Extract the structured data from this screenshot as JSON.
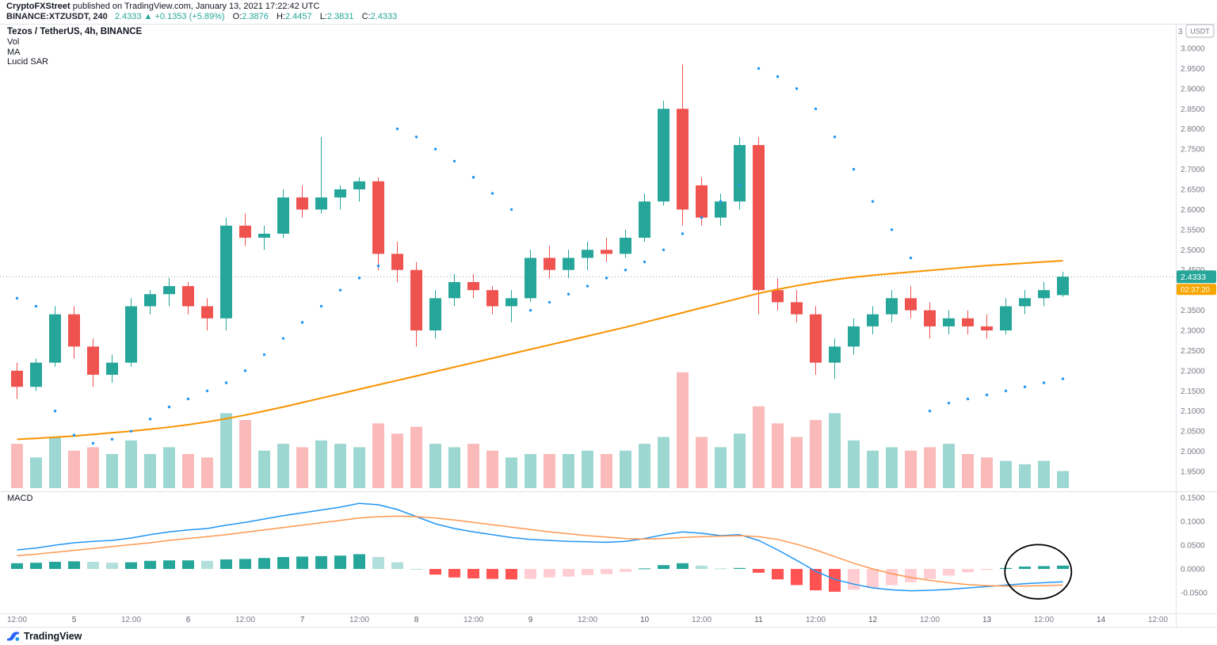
{
  "meta": {
    "attribution_bold": "CryptoFXStreet",
    "attribution_rest": " published on TradingView.com, January 13, 2021 17:22:42 UTC"
  },
  "ticker": {
    "symbol_line": "BINANCE:XTZUSDT, 240",
    "last_price": "2.4333",
    "arrow": "▲",
    "change": "+0.1353 (+5.89%)",
    "o_label": "O:",
    "o": "2.3876",
    "h_label": "H:",
    "h": "2.4457",
    "l_label": "L:",
    "l": "2.3831",
    "c_label": "C:",
    "c": "2.4333"
  },
  "legend": {
    "title": "Tezos / TetherUS, 4h, BINANCE",
    "indicators": [
      "Vol",
      "MA",
      "Lucid SAR"
    ]
  },
  "macd_panel": {
    "label": "MACD"
  },
  "price_axis": {
    "top_partial": "3",
    "unit_badge": "USDT",
    "last_price_label": "2.4333",
    "countdown": "02:37:20"
  },
  "logo": {
    "text": "TradingView"
  },
  "colors": {
    "up": "#26a69a",
    "down": "#ef5350",
    "vol_up": "rgba(38,166,154,0.45)",
    "vol_down": "rgba(239,83,80,0.40)",
    "ma": "#f89300",
    "sar": "#2196f3",
    "macd_line": "#2196f3",
    "signal_line": "#ff9850",
    "hist_up": "#26a69a",
    "hist_up_fade": "#b2dfdb",
    "hist_down": "#ff5252",
    "hist_down_fade": "#ffcdd2",
    "price_badge": "#26a69a",
    "countdown_badge": "#f7a600",
    "axis_text": "#787b86",
    "axis_text_major": "#555a64",
    "separator": "#e0e3eb",
    "price_line": "#90a4ae",
    "annotation": "#000000"
  },
  "chart_data": {
    "type": "candlestick",
    "title": "Tezos / TetherUS, 4h, BINANCE",
    "symbol": "BINANCE:XTZUSDT",
    "interval": "240",
    "price_axis_range": [
      1.95,
      3.0
    ],
    "price_axis_ticks": [
      3.0,
      2.95,
      2.9,
      2.85,
      2.8,
      2.75,
      2.7,
      2.65,
      2.6,
      2.55,
      2.5,
      2.45,
      2.4,
      2.35,
      2.3,
      2.25,
      2.2,
      2.15,
      2.1,
      2.05,
      2.0,
      1.95
    ],
    "macd_axis_ticks": [
      0.15,
      0.1,
      0.05,
      0,
      -0.05
    ],
    "price_line": 2.4333,
    "time_axis": [
      {
        "i": 0,
        "t": "12:00"
      },
      {
        "i": 3,
        "t": "5",
        "d": true
      },
      {
        "i": 6,
        "t": "12:00"
      },
      {
        "i": 9,
        "t": "6",
        "d": true
      },
      {
        "i": 12,
        "t": "12:00"
      },
      {
        "i": 15,
        "t": "7",
        "d": true
      },
      {
        "i": 18,
        "t": "12:00"
      },
      {
        "i": 21,
        "t": "8",
        "d": true
      },
      {
        "i": 24,
        "t": "12:00"
      },
      {
        "i": 27,
        "t": "9",
        "d": true
      },
      {
        "i": 30,
        "t": "12:00"
      },
      {
        "i": 33,
        "t": "10",
        "d": true
      },
      {
        "i": 36,
        "t": "12:00"
      },
      {
        "i": 39,
        "t": "11",
        "d": true
      },
      {
        "i": 42,
        "t": "12:00"
      },
      {
        "i": 45,
        "t": "12",
        "d": true
      },
      {
        "i": 48,
        "t": "12:00"
      },
      {
        "i": 51,
        "t": "13",
        "d": true
      },
      {
        "i": 54,
        "t": "12:00"
      },
      {
        "i": 57,
        "t": "14",
        "d": true
      },
      {
        "i": 60,
        "t": "12:00"
      }
    ],
    "candles": [
      [
        2.2,
        2.22,
        2.13,
        2.16
      ],
      [
        2.16,
        2.23,
        2.15,
        2.22
      ],
      [
        2.22,
        2.36,
        2.21,
        2.34
      ],
      [
        2.34,
        2.36,
        2.23,
        2.26
      ],
      [
        2.26,
        2.28,
        2.16,
        2.19
      ],
      [
        2.19,
        2.24,
        2.17,
        2.22
      ],
      [
        2.22,
        2.38,
        2.21,
        2.36
      ],
      [
        2.36,
        2.4,
        2.34,
        2.39
      ],
      [
        2.39,
        2.43,
        2.36,
        2.41
      ],
      [
        2.41,
        2.42,
        2.34,
        2.36
      ],
      [
        2.36,
        2.38,
        2.3,
        2.33
      ],
      [
        2.33,
        2.58,
        2.3,
        2.56
      ],
      [
        2.56,
        2.59,
        2.51,
        2.53
      ],
      [
        2.53,
        2.56,
        2.5,
        2.54
      ],
      [
        2.54,
        2.65,
        2.53,
        2.63
      ],
      [
        2.63,
        2.66,
        2.58,
        2.6
      ],
      [
        2.6,
        2.78,
        2.59,
        2.63
      ],
      [
        2.63,
        2.66,
        2.6,
        2.65
      ],
      [
        2.65,
        2.68,
        2.62,
        2.67
      ],
      [
        2.67,
        2.68,
        2.45,
        2.49
      ],
      [
        2.49,
        2.52,
        2.42,
        2.45
      ],
      [
        2.45,
        2.47,
        2.26,
        2.3
      ],
      [
        2.3,
        2.4,
        2.28,
        2.38
      ],
      [
        2.38,
        2.44,
        2.36,
        2.42
      ],
      [
        2.42,
        2.44,
        2.38,
        2.4
      ],
      [
        2.4,
        2.41,
        2.34,
        2.36
      ],
      [
        2.36,
        2.4,
        2.32,
        2.38
      ],
      [
        2.38,
        2.5,
        2.37,
        2.48
      ],
      [
        2.48,
        2.51,
        2.43,
        2.45
      ],
      [
        2.45,
        2.5,
        2.43,
        2.48
      ],
      [
        2.48,
        2.52,
        2.45,
        2.5
      ],
      [
        2.5,
        2.53,
        2.47,
        2.49
      ],
      [
        2.49,
        2.55,
        2.48,
        2.53
      ],
      [
        2.53,
        2.64,
        2.52,
        2.62
      ],
      [
        2.62,
        2.87,
        2.61,
        2.85
      ],
      [
        2.85,
        2.96,
        2.56,
        2.6
      ],
      [
        2.66,
        2.68,
        2.56,
        2.58
      ],
      [
        2.58,
        2.64,
        2.56,
        2.62
      ],
      [
        2.62,
        2.78,
        2.6,
        2.76
      ],
      [
        2.76,
        2.78,
        2.34,
        2.4
      ],
      [
        2.4,
        2.43,
        2.35,
        2.37
      ],
      [
        2.37,
        2.4,
        2.32,
        2.34
      ],
      [
        2.34,
        2.36,
        2.19,
        2.22
      ],
      [
        2.22,
        2.28,
        2.18,
        2.26
      ],
      [
        2.26,
        2.33,
        2.24,
        2.31
      ],
      [
        2.31,
        2.36,
        2.29,
        2.34
      ],
      [
        2.34,
        2.4,
        2.32,
        2.38
      ],
      [
        2.38,
        2.41,
        2.33,
        2.35
      ],
      [
        2.35,
        2.37,
        2.28,
        2.31
      ],
      [
        2.31,
        2.35,
        2.29,
        2.33
      ],
      [
        2.33,
        2.35,
        2.29,
        2.31
      ],
      [
        2.31,
        2.34,
        2.28,
        2.3
      ],
      [
        2.3,
        2.38,
        2.29,
        2.36
      ],
      [
        2.36,
        2.4,
        2.34,
        2.38
      ],
      [
        2.38,
        2.42,
        2.36,
        2.4
      ],
      [
        2.3876,
        2.4457,
        2.3831,
        2.4333
      ]
    ],
    "volume": [
      1.3,
      0.9,
      1.5,
      1.1,
      1.2,
      1.0,
      1.4,
      1.0,
      1.2,
      1.0,
      0.9,
      2.2,
      2.0,
      1.1,
      1.3,
      1.2,
      1.4,
      1.3,
      1.2,
      1.9,
      1.6,
      1.8,
      1.3,
      1.2,
      1.3,
      1.1,
      0.9,
      1.0,
      1.0,
      1.0,
      1.1,
      1.0,
      1.1,
      1.3,
      1.5,
      3.4,
      1.5,
      1.2,
      1.6,
      2.4,
      1.9,
      1.5,
      2.0,
      2.2,
      1.4,
      1.1,
      1.2,
      1.1,
      1.2,
      1.3,
      1.0,
      0.9,
      0.8,
      0.7,
      0.8,
      0.5
    ],
    "ma": [
      2.03,
      2.032,
      2.035,
      2.038,
      2.042,
      2.046,
      2.05,
      2.055,
      2.06,
      2.066,
      2.073,
      2.081,
      2.09,
      2.1,
      2.11,
      2.121,
      2.132,
      2.143,
      2.154,
      2.165,
      2.176,
      2.187,
      2.198,
      2.209,
      2.22,
      2.231,
      2.242,
      2.253,
      2.264,
      2.275,
      2.286,
      2.297,
      2.308,
      2.32,
      2.332,
      2.344,
      2.356,
      2.368,
      2.38,
      2.392,
      2.402,
      2.411,
      2.419,
      2.426,
      2.432,
      2.437,
      2.441,
      2.445,
      2.449,
      2.453,
      2.457,
      2.461,
      2.464,
      2.467,
      2.47,
      2.473
    ],
    "sar": [
      2.38,
      2.36,
      2.1,
      2.04,
      2.02,
      2.03,
      2.05,
      2.08,
      2.11,
      2.13,
      2.15,
      2.17,
      2.2,
      2.24,
      2.28,
      2.32,
      2.36,
      2.4,
      2.43,
      2.46,
      2.8,
      2.78,
      2.75,
      2.72,
      2.68,
      2.64,
      2.6,
      2.35,
      2.37,
      2.39,
      2.41,
      2.43,
      2.45,
      2.47,
      2.5,
      2.54,
      2.58,
      2.62,
      2.66,
      2.95,
      2.93,
      2.9,
      2.85,
      2.78,
      2.7,
      2.62,
      2.55,
      2.48,
      2.1,
      2.12,
      2.13,
      2.14,
      2.15,
      2.16,
      2.17,
      2.18
    ],
    "macd": {
      "macd": [
        0.04,
        0.044,
        0.05,
        0.055,
        0.058,
        0.06,
        0.065,
        0.072,
        0.078,
        0.082,
        0.085,
        0.092,
        0.098,
        0.105,
        0.112,
        0.118,
        0.124,
        0.13,
        0.138,
        0.135,
        0.125,
        0.11,
        0.095,
        0.085,
        0.078,
        0.072,
        0.066,
        0.062,
        0.06,
        0.058,
        0.057,
        0.056,
        0.058,
        0.064,
        0.072,
        0.078,
        0.075,
        0.07,
        0.072,
        0.06,
        0.04,
        0.018,
        -0.005,
        -0.022,
        -0.032,
        -0.04,
        -0.044,
        -0.046,
        -0.045,
        -0.043,
        -0.04,
        -0.037,
        -0.034,
        -0.031,
        -0.029,
        -0.027
      ],
      "signal": [
        0.028,
        0.031,
        0.035,
        0.039,
        0.043,
        0.047,
        0.051,
        0.055,
        0.06,
        0.064,
        0.068,
        0.072,
        0.077,
        0.082,
        0.087,
        0.092,
        0.097,
        0.102,
        0.107,
        0.11,
        0.111,
        0.11,
        0.107,
        0.103,
        0.098,
        0.093,
        0.088,
        0.083,
        0.078,
        0.074,
        0.07,
        0.067,
        0.064,
        0.063,
        0.064,
        0.066,
        0.068,
        0.069,
        0.07,
        0.068,
        0.062,
        0.052,
        0.04,
        0.026,
        0.012,
        0.0,
        -0.01,
        -0.018,
        -0.024,
        -0.029,
        -0.033,
        -0.035,
        -0.036,
        -0.036,
        -0.035,
        -0.034
      ]
    },
    "annotation_ellipse": {
      "center_index": 53.7,
      "center_value": -0.006,
      "radius_x_index": 1.75,
      "radius_y_value": 0.057
    }
  }
}
